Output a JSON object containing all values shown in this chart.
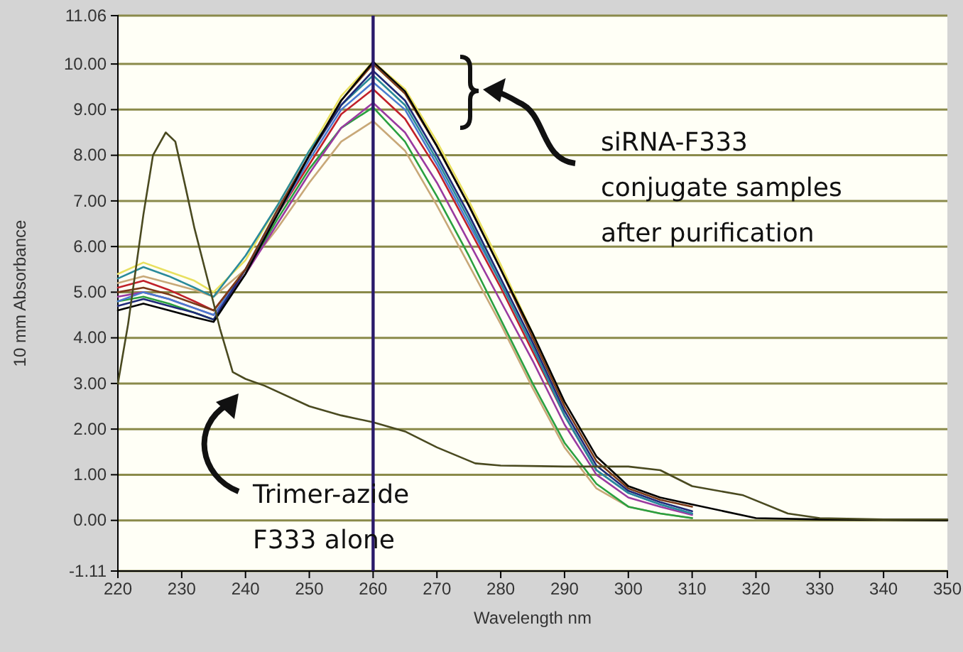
{
  "chart_data": {
    "type": "line",
    "xlabel": "Wavelength nm",
    "ylabel": "10 mm Absorbance",
    "xlim": [
      220,
      350
    ],
    "xticks": [
      220,
      230,
      240,
      250,
      260,
      270,
      280,
      290,
      300,
      310,
      320,
      330,
      340,
      350
    ],
    "ylim": [
      -1.11,
      11.06
    ],
    "yticks": [
      {
        "value": -1.11,
        "label": "-1.11"
      },
      {
        "value": 0,
        "label": "0.00"
      },
      {
        "value": 1,
        "label": "1.00"
      },
      {
        "value": 2,
        "label": "2.00"
      },
      {
        "value": 3,
        "label": "3.00"
      },
      {
        "value": 4,
        "label": "4.00"
      },
      {
        "value": 5,
        "label": "5.00"
      },
      {
        "value": 6,
        "label": "6.00"
      },
      {
        "value": 7,
        "label": "7.00"
      },
      {
        "value": 8,
        "label": "8.00"
      },
      {
        "value": 9,
        "label": "9.00"
      },
      {
        "value": 10,
        "label": "10.00"
      },
      {
        "value": 11.06,
        "label": "11.06"
      }
    ],
    "grid": "y",
    "marker": "none",
    "line_style": "solid",
    "x": [
      220,
      224,
      228,
      232,
      235,
      240,
      245,
      250,
      255,
      260,
      265,
      270,
      275,
      280,
      285,
      290,
      295,
      300,
      305,
      310,
      320,
      330,
      340,
      350
    ],
    "series": [
      {
        "color": "#e8e060",
        "values": [
          5.4,
          5.65,
          5.45,
          5.25,
          5.0,
          5.7,
          6.9,
          8.1,
          9.3,
          10.05,
          9.45,
          8.3,
          7.0,
          5.6,
          4.1,
          2.5,
          null,
          null,
          null,
          null,
          null,
          null,
          null,
          null
        ]
      },
      {
        "color": "#c8a878",
        "values": [
          5.2,
          5.35,
          5.2,
          5.05,
          4.9,
          5.5,
          6.4,
          7.4,
          8.3,
          8.75,
          8.1,
          6.9,
          5.6,
          4.3,
          2.9,
          1.6,
          0.7,
          0.3,
          0.15,
          0.05,
          null,
          null,
          null,
          null
        ]
      },
      {
        "color": "#2aa040",
        "values": [
          4.8,
          4.9,
          4.75,
          4.55,
          4.4,
          5.4,
          6.6,
          7.7,
          8.6,
          9.05,
          8.3,
          7.1,
          5.8,
          4.4,
          3.0,
          1.7,
          0.8,
          0.3,
          0.15,
          0.05,
          null,
          null,
          null,
          null
        ]
      },
      {
        "color": "#9a3aa0",
        "values": [
          4.9,
          5.0,
          4.85,
          4.65,
          4.5,
          5.4,
          6.5,
          7.6,
          8.6,
          9.15,
          8.5,
          7.4,
          6.1,
          4.8,
          3.5,
          2.1,
          1.0,
          0.5,
          0.3,
          0.12,
          null,
          null,
          null,
          null
        ]
      },
      {
        "color": "#c0202a",
        "values": [
          5.1,
          5.25,
          5.05,
          4.8,
          4.6,
          5.5,
          6.7,
          7.8,
          8.9,
          9.45,
          8.8,
          7.7,
          6.4,
          5.1,
          3.7,
          2.3,
          1.1,
          null,
          null,
          null,
          null,
          null,
          null,
          null
        ]
      },
      {
        "color": "#4a7ad0",
        "values": [
          4.8,
          5.0,
          4.85,
          4.65,
          4.5,
          5.5,
          6.7,
          7.9,
          9.0,
          9.6,
          9.0,
          7.8,
          6.5,
          5.2,
          3.8,
          2.3,
          1.1,
          0.6,
          0.35,
          0.15,
          null,
          null,
          null,
          null
        ]
      },
      {
        "color": "#2a8a9a",
        "values": [
          5.3,
          5.55,
          5.35,
          5.1,
          4.9,
          5.8,
          6.9,
          8.1,
          9.1,
          9.75,
          9.1,
          7.9,
          6.6,
          5.2,
          3.8,
          2.3,
          1.1,
          0.6,
          0.35,
          0.15,
          null,
          null,
          null,
          null
        ]
      },
      {
        "color": "#1f2a7a",
        "values": [
          4.7,
          4.85,
          4.7,
          4.55,
          4.4,
          5.5,
          6.8,
          8.0,
          9.1,
          9.85,
          9.2,
          8.0,
          6.7,
          5.3,
          3.9,
          2.4,
          1.2,
          0.65,
          0.4,
          0.2,
          null,
          null,
          null,
          null
        ]
      },
      {
        "color": "#7a3a1a",
        "values": [
          5.0,
          5.1,
          4.95,
          4.75,
          4.6,
          5.5,
          6.8,
          8.0,
          9.2,
          10.0,
          9.35,
          8.2,
          6.9,
          5.5,
          4.0,
          2.5,
          1.3,
          0.7,
          0.45,
          0.3,
          null,
          null,
          null,
          null
        ]
      },
      {
        "color": "#000000",
        "values": [
          4.6,
          4.75,
          4.6,
          4.45,
          4.35,
          5.4,
          6.7,
          8.0,
          9.2,
          10.05,
          9.4,
          8.2,
          6.9,
          5.5,
          4.1,
          2.6,
          1.4,
          0.75,
          0.5,
          0.35,
          0.05,
          0.02,
          0.01,
          0.0
        ]
      },
      {
        "color": "#4a4a20",
        "x": [
          220,
          221.6,
          224,
          225.5,
          227.5,
          229,
          230.6,
          232,
          234.2,
          236,
          238,
          240,
          243,
          250,
          255,
          260,
          265,
          270,
          276,
          280,
          290,
          300,
          305,
          310,
          318,
          325,
          330,
          340,
          350
        ],
        "values": [
          3.0,
          4.3,
          6.7,
          8.0,
          8.5,
          8.3,
          7.3,
          6.4,
          5.2,
          4.2,
          3.25,
          3.1,
          2.95,
          2.5,
          2.3,
          2.15,
          1.95,
          1.6,
          1.25,
          1.2,
          1.18,
          1.18,
          1.1,
          0.75,
          0.55,
          0.15,
          0.05,
          0.02,
          0.02
        ]
      }
    ],
    "ref_lines": [
      {
        "axis": "x",
        "value": 260,
        "color": "#2a1a6a"
      }
    ],
    "annotations": [
      "siRNA-F333\nconjugate samples\nafter purification",
      "Trimer-azide\nF333 alone"
    ]
  }
}
